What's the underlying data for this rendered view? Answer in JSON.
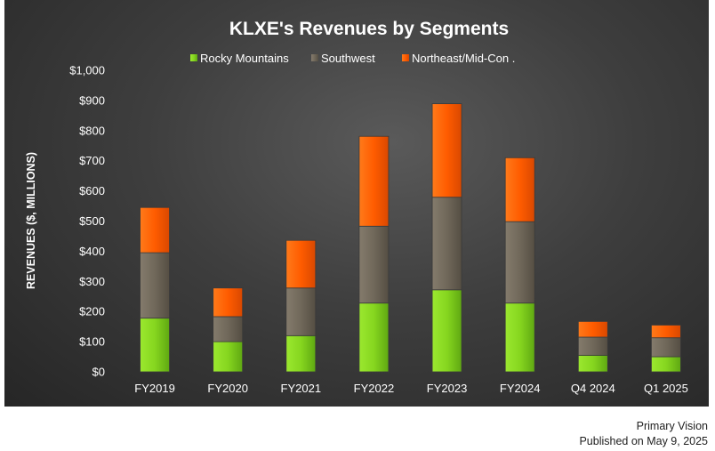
{
  "chart_data": {
    "type": "bar",
    "stacked": true,
    "title": "KLXE's Revenues by Segments",
    "ylabel": "REVENUES ($, MILLIONS)",
    "xlabel": "",
    "ylim": [
      0,
      1000
    ],
    "yticks": [
      0,
      100,
      200,
      300,
      400,
      500,
      600,
      700,
      800,
      900,
      1000
    ],
    "ytick_labels": [
      "$0",
      "$100",
      "$200",
      "$300",
      "$400",
      "$500",
      "$600",
      "$700",
      "$800",
      "$900",
      "$1,000"
    ],
    "categories": [
      "FY2019",
      "FY2020",
      "FY2021",
      "FY2022",
      "FY2023",
      "FY2024",
      "Q4 2024",
      "Q1 2025"
    ],
    "series": [
      {
        "name": "Rocky Mountains",
        "color": "#7ed321",
        "values": [
          178,
          100,
          120,
          228,
          272,
          228,
          55,
          50
        ]
      },
      {
        "name": "Southwest",
        "color": "#6b6356",
        "values": [
          217,
          83,
          158,
          255,
          307,
          270,
          60,
          63
        ]
      },
      {
        "name": "Northeast/Mid-Con .",
        "color": "#ff5a00",
        "values": [
          150,
          95,
          158,
          298,
          310,
          212,
          52,
          42
        ]
      }
    ],
    "legend_position": "top-center",
    "grid": false
  },
  "footer": {
    "source": "Primary Vision",
    "published": "Published on May 9, 2025"
  }
}
